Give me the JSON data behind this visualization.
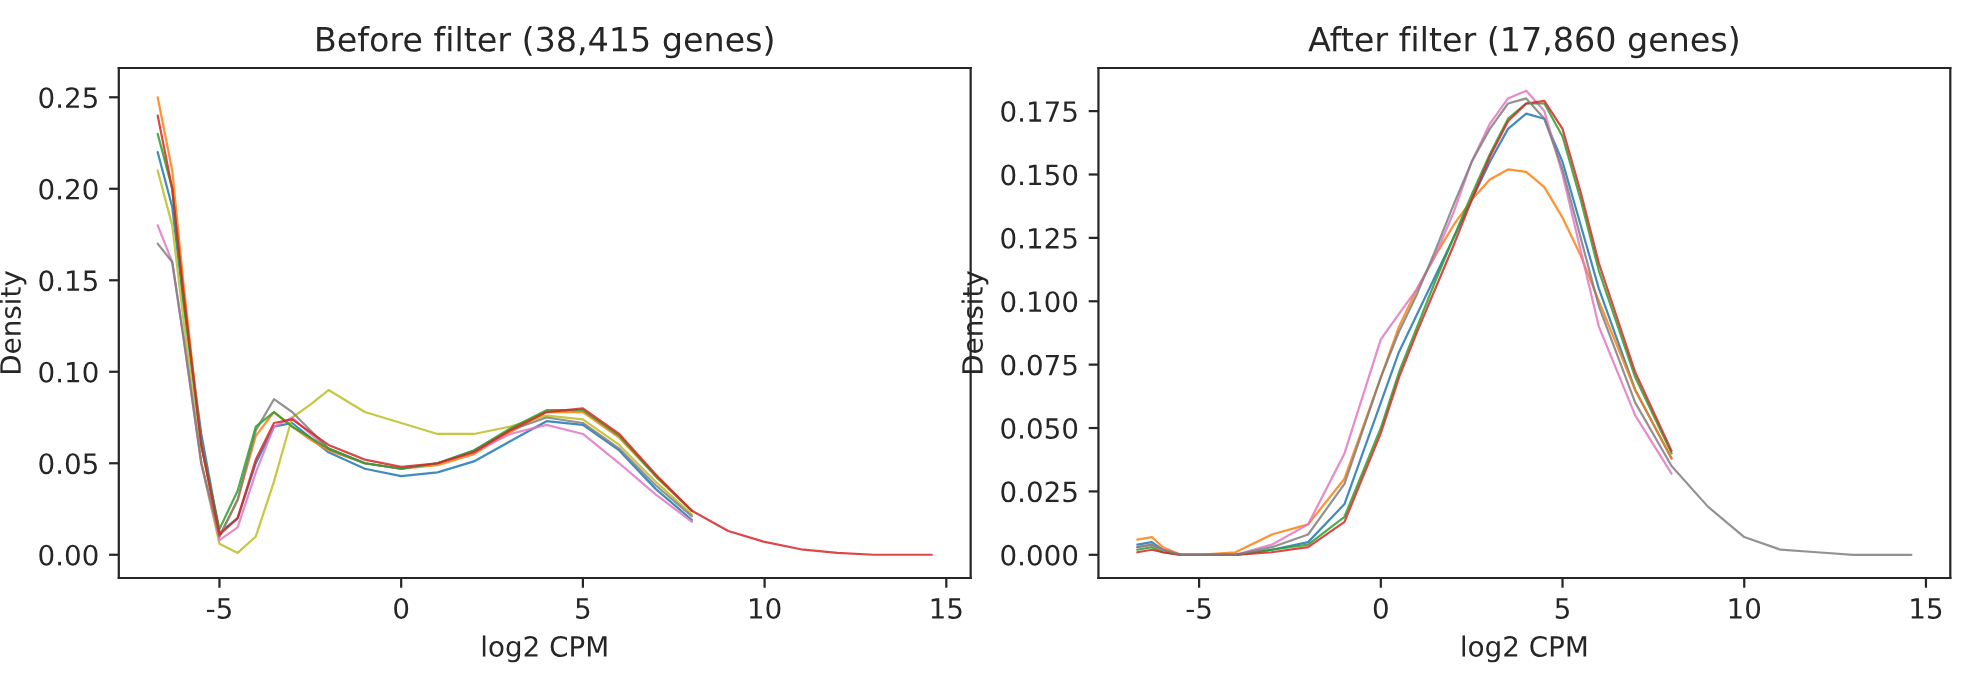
{
  "chart_data": [
    {
      "type": "line",
      "title": "Before filter (38,415 genes)",
      "xlabel": "log2 CPM",
      "ylabel": "Density",
      "xlim": [
        -7.77,
        15.67
      ],
      "xticks": [
        -5,
        0,
        5,
        10,
        15
      ],
      "ylim": [
        -0.0127,
        0.266
      ],
      "yticks": [
        {
          "value": 0,
          "label": "0.00"
        },
        0.05,
        {
          "value": 0.1,
          "label": "0.10"
        },
        0.15,
        {
          "value": 0.2,
          "label": "0.20"
        },
        0.25
      ],
      "x": [
        -6.7,
        -6.3,
        -6,
        -5.5,
        -5,
        -4.5,
        -4,
        -3.5,
        -3,
        -2.5,
        -2,
        -1,
        0,
        1,
        2,
        3,
        4,
        5,
        6,
        7,
        8,
        9,
        10,
        11,
        12,
        13,
        14.6
      ],
      "series": [
        {
          "color": "#1f77b4",
          "values": [
            0.22,
            0.19,
            0.14,
            0.066,
            0.012,
            0.02,
            0.05,
            0.07,
            0.072,
            0.064,
            0.056,
            0.047,
            0.043,
            0.045,
            0.051,
            0.062,
            0.073,
            0.071,
            0.057,
            0.036,
            0.019,
            null,
            null,
            null,
            null,
            null,
            null
          ]
        },
        {
          "color": "#ff7f0e",
          "values": [
            0.25,
            0.21,
            0.15,
            0.06,
            0.01,
            0.03,
            0.065,
            0.078,
            0.07,
            0.063,
            0.057,
            0.05,
            0.047,
            0.049,
            0.055,
            0.067,
            0.078,
            0.078,
            0.064,
            0.043,
            0.024,
            null,
            null,
            null,
            null,
            null,
            null
          ]
        },
        {
          "color": "#bcbd22",
          "values": [
            0.21,
            0.18,
            0.13,
            0.05,
            0.006,
            0.001,
            0.01,
            0.04,
            0.075,
            0.082,
            0.09,
            0.078,
            0.072,
            0.066,
            0.066,
            0.07,
            0.076,
            0.074,
            0.06,
            0.04,
            0.022,
            null,
            null,
            null,
            null,
            null,
            null
          ]
        },
        {
          "color": "#e377c2",
          "values": [
            0.18,
            0.16,
            0.12,
            0.05,
            0.008,
            0.015,
            0.045,
            0.07,
            0.075,
            0.066,
            0.058,
            0.05,
            0.047,
            0.05,
            0.056,
            0.066,
            0.071,
            0.066,
            0.05,
            0.033,
            0.018,
            null,
            null,
            null,
            null,
            null,
            null
          ]
        },
        {
          "color": "#7f7f7f",
          "values": [
            0.17,
            0.16,
            0.12,
            0.05,
            0.01,
            0.03,
            0.068,
            0.085,
            0.078,
            0.068,
            0.058,
            0.05,
            0.047,
            0.05,
            0.057,
            0.068,
            0.075,
            0.072,
            0.058,
            0.038,
            0.021,
            null,
            null,
            null,
            null,
            null,
            null
          ]
        },
        {
          "color": "#2ca02c",
          "values": [
            0.23,
            0.2,
            0.14,
            0.06,
            0.014,
            0.035,
            0.07,
            0.078,
            0.07,
            0.064,
            0.058,
            0.05,
            0.047,
            0.05,
            0.057,
            0.069,
            0.079,
            0.079,
            0.065,
            0.043,
            0.024,
            null,
            null,
            null,
            null,
            null,
            null
          ]
        },
        {
          "color": "#d62728",
          "values": [
            0.24,
            0.2,
            0.145,
            0.06,
            0.011,
            0.02,
            0.052,
            0.072,
            0.074,
            0.067,
            0.06,
            0.052,
            0.048,
            0.05,
            0.056,
            0.068,
            0.078,
            0.08,
            0.066,
            0.044,
            0.024,
            0.013,
            0.007,
            0.003,
            0.001,
            0,
            0
          ]
        }
      ]
    },
    {
      "type": "line",
      "title": "After filter (17,860 genes)",
      "xlabel": "log2 CPM",
      "ylabel": "Density",
      "xlim": [
        -7.77,
        15.67
      ],
      "xticks": [
        -5,
        0,
        5,
        10,
        15
      ],
      "ylim": [
        -0.00915,
        0.192
      ],
      "yticks": [
        {
          "value": 0,
          "label": "0.000"
        },
        0.025,
        {
          "value": 0.05,
          "label": "0.050"
        },
        0.075,
        {
          "value": 0.1,
          "label": "0.100"
        },
        0.125,
        {
          "value": 0.15,
          "label": "0.150"
        },
        0.175
      ],
      "x": [
        -6.7,
        -6.3,
        -6,
        -5.5,
        -5,
        -4,
        -3,
        -2,
        -1,
        0,
        0.5,
        1,
        1.5,
        2,
        2.5,
        3,
        3.5,
        4,
        4.5,
        5,
        5.5,
        6,
        7,
        8,
        9,
        10,
        11,
        12,
        13,
        14.6
      ],
      "series": [
        {
          "color": "#1f77b4",
          "values": [
            0.004,
            0.005,
            0.002,
            0,
            0,
            0,
            0.002,
            0.005,
            0.02,
            0.06,
            0.08,
            0.095,
            0.11,
            0.125,
            0.14,
            0.155,
            0.168,
            0.174,
            0.172,
            0.155,
            0.13,
            0.105,
            0.065,
            0.038,
            null,
            null,
            null,
            null,
            null,
            null
          ]
        },
        {
          "color": "#ff7f0e",
          "values": [
            0.006,
            0.007,
            0.003,
            0,
            0,
            0.001,
            0.008,
            0.012,
            0.03,
            0.07,
            0.09,
            0.105,
            0.118,
            0.13,
            0.14,
            0.148,
            0.152,
            0.151,
            0.145,
            0.133,
            0.118,
            0.1,
            0.065,
            0.038,
            null,
            null,
            null,
            null,
            null,
            null
          ]
        },
        {
          "color": "#e377c2",
          "values": [
            0.003,
            0.004,
            0.002,
            0,
            0,
            0,
            0.004,
            0.012,
            0.04,
            0.085,
            0.095,
            0.105,
            0.118,
            0.135,
            0.155,
            0.17,
            0.18,
            0.183,
            0.175,
            0.15,
            0.12,
            0.09,
            0.055,
            0.032,
            null,
            null,
            null,
            null,
            null,
            null
          ]
        },
        {
          "color": "#2ca02c",
          "values": [
            0.002,
            0.003,
            0.001,
            0,
            0,
            0,
            0.002,
            0.004,
            0.015,
            0.05,
            0.072,
            0.09,
            0.108,
            0.125,
            0.142,
            0.158,
            0.172,
            0.178,
            0.178,
            0.165,
            0.14,
            0.112,
            0.07,
            0.04,
            null,
            null,
            null,
            null,
            null,
            null
          ]
        },
        {
          "color": "#d62728",
          "values": [
            0.001,
            0.002,
            0.001,
            0,
            0,
            0,
            0.001,
            0.003,
            0.013,
            0.048,
            0.07,
            0.088,
            0.105,
            0.122,
            0.14,
            0.157,
            0.171,
            0.178,
            0.179,
            0.168,
            0.143,
            0.115,
            0.072,
            0.041,
            null,
            null,
            null,
            null,
            null,
            null
          ]
        },
        {
          "color": "#7f7f7f",
          "values": [
            0.003,
            0.004,
            0.002,
            0,
            0,
            0,
            0.003,
            0.008,
            0.028,
            0.07,
            0.088,
            0.103,
            0.12,
            0.138,
            0.155,
            0.168,
            0.178,
            0.18,
            0.172,
            0.152,
            0.125,
            0.098,
            0.06,
            0.035,
            0.019,
            0.007,
            0.002,
            0.001,
            0,
            0
          ]
        }
      ]
    }
  ]
}
